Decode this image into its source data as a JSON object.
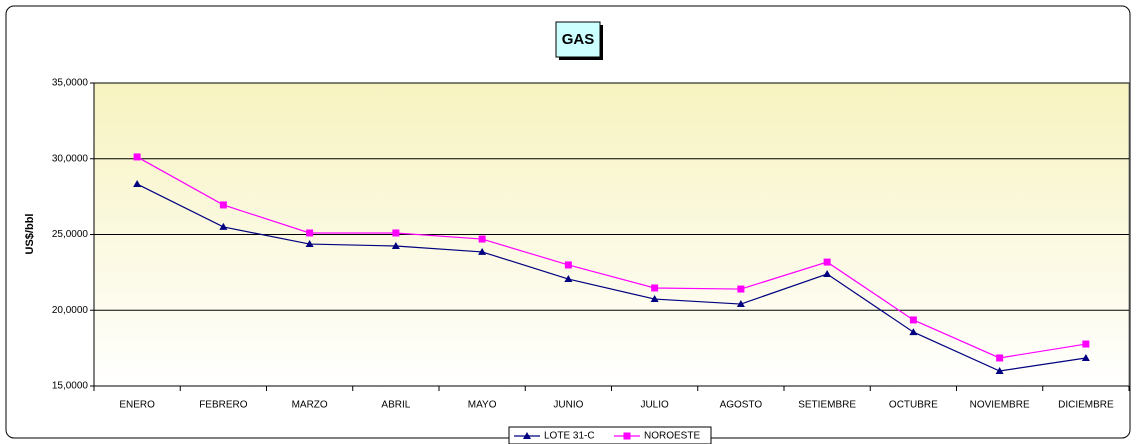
{
  "chart_data": {
    "type": "line",
    "title": "GAS",
    "y_label": "US$/bbl",
    "categories": [
      "ENERO",
      "FEBRERO",
      "MARZO",
      "ABRIL",
      "MAYO",
      "JUNIO",
      "JULIO",
      "AGOSTO",
      "SETIEMBRE",
      "OCTUBRE",
      "NOVIEMBRE",
      "DICIEMBRE"
    ],
    "series": [
      {
        "name": "LOTE 31-C",
        "color": "#000080",
        "marker": "triangle",
        "values": [
          28.33,
          25.5,
          24.37,
          24.24,
          23.85,
          22.06,
          20.74,
          20.41,
          22.39,
          18.56,
          15.99,
          16.85
        ]
      },
      {
        "name": "NOROESTE",
        "color": "#ff00ff",
        "marker": "square",
        "values": [
          30.12,
          26.95,
          25.1,
          25.1,
          24.7,
          22.99,
          21.47,
          21.4,
          23.18,
          19.36,
          16.85,
          17.77
        ]
      }
    ],
    "ylim": [
      15,
      35
    ],
    "yticks": [
      {
        "value": 15,
        "label": "15,0000"
      },
      {
        "value": 20,
        "label": "20,0000"
      },
      {
        "value": 25,
        "label": "25,0000"
      },
      {
        "value": 30,
        "label": "30,0000"
      },
      {
        "value": 35,
        "label": "35,0000"
      }
    ],
    "grid": true,
    "legend": "bottom"
  }
}
